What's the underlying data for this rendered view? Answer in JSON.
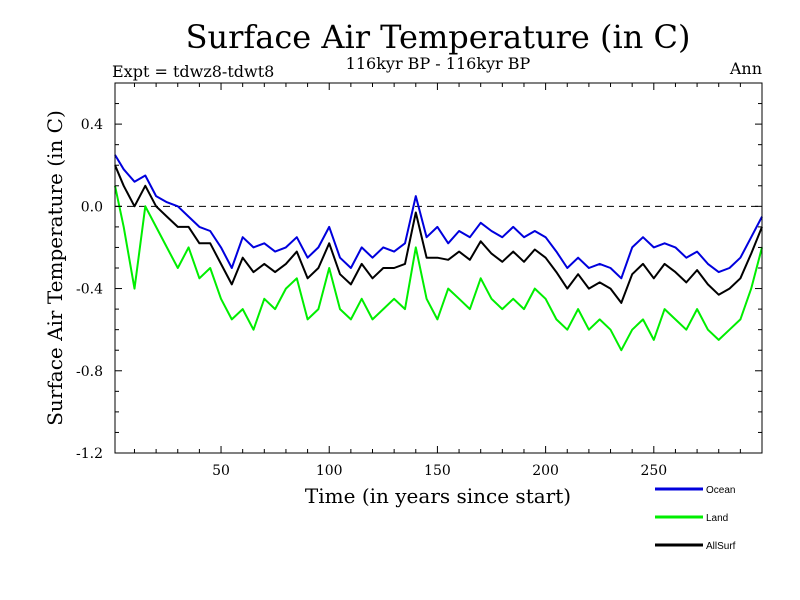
{
  "chart_data": {
    "type": "line",
    "title": "Surface Air Temperature (in C)",
    "subtitle": "116kyr BP - 116kyr BP",
    "left_label": "Expt = tdwz8-tdwt8",
    "right_label": "Ann",
    "xlabel": "Time (in years since start)",
    "ylabel": "Surface Air Temperature (in C)",
    "xlim": [
      1,
      300
    ],
    "ylim": [
      -1.2,
      0.6
    ],
    "xticks": [
      50,
      100,
      150,
      200,
      250
    ],
    "yticks": [
      0.4,
      0.0,
      -0.4,
      -0.8,
      -1.2
    ],
    "ytick_labels": [
      "0.4",
      "0.0",
      "-0.4",
      "-0.8",
      "-1.2"
    ],
    "reference_line": 0.0,
    "legend_position": "bottom-right",
    "series": [
      {
        "name": "Ocean",
        "color": "#0000dd",
        "x": [
          1,
          5,
          10,
          15,
          20,
          25,
          30,
          35,
          40,
          45,
          50,
          55,
          60,
          65,
          70,
          75,
          80,
          85,
          90,
          95,
          100,
          105,
          110,
          115,
          120,
          125,
          130,
          135,
          140,
          145,
          150,
          155,
          160,
          165,
          170,
          175,
          180,
          185,
          190,
          195,
          200,
          205,
          210,
          215,
          220,
          225,
          230,
          235,
          240,
          245,
          250,
          255,
          260,
          265,
          270,
          275,
          280,
          285,
          290,
          295,
          300
        ],
        "values": [
          0.25,
          0.18,
          0.12,
          0.15,
          0.05,
          0.02,
          0.0,
          -0.05,
          -0.1,
          -0.12,
          -0.2,
          -0.3,
          -0.15,
          -0.2,
          -0.18,
          -0.22,
          -0.2,
          -0.15,
          -0.25,
          -0.2,
          -0.1,
          -0.25,
          -0.3,
          -0.2,
          -0.25,
          -0.2,
          -0.22,
          -0.18,
          0.05,
          -0.15,
          -0.1,
          -0.18,
          -0.12,
          -0.15,
          -0.08,
          -0.12,
          -0.15,
          -0.1,
          -0.15,
          -0.12,
          -0.15,
          -0.22,
          -0.3,
          -0.25,
          -0.3,
          -0.28,
          -0.3,
          -0.35,
          -0.2,
          -0.15,
          -0.2,
          -0.18,
          -0.2,
          -0.25,
          -0.22,
          -0.28,
          -0.32,
          -0.3,
          -0.25,
          -0.15,
          -0.05
        ]
      },
      {
        "name": "Land",
        "color": "#00ee00",
        "x": [
          1,
          5,
          10,
          15,
          20,
          25,
          30,
          35,
          40,
          45,
          50,
          55,
          60,
          65,
          70,
          75,
          80,
          85,
          90,
          95,
          100,
          105,
          110,
          115,
          120,
          125,
          130,
          135,
          140,
          145,
          150,
          155,
          160,
          165,
          170,
          175,
          180,
          185,
          190,
          195,
          200,
          205,
          210,
          215,
          220,
          225,
          230,
          235,
          240,
          245,
          250,
          255,
          260,
          265,
          270,
          275,
          280,
          285,
          290,
          295,
          300
        ],
        "values": [
          0.1,
          -0.1,
          -0.4,
          0.0,
          -0.1,
          -0.2,
          -0.3,
          -0.2,
          -0.35,
          -0.3,
          -0.45,
          -0.55,
          -0.5,
          -0.6,
          -0.45,
          -0.5,
          -0.4,
          -0.35,
          -0.55,
          -0.5,
          -0.3,
          -0.5,
          -0.55,
          -0.45,
          -0.55,
          -0.5,
          -0.45,
          -0.5,
          -0.2,
          -0.45,
          -0.55,
          -0.4,
          -0.45,
          -0.5,
          -0.35,
          -0.45,
          -0.5,
          -0.45,
          -0.5,
          -0.4,
          -0.45,
          -0.55,
          -0.6,
          -0.5,
          -0.6,
          -0.55,
          -0.6,
          -0.7,
          -0.6,
          -0.55,
          -0.65,
          -0.5,
          -0.55,
          -0.6,
          -0.5,
          -0.6,
          -0.65,
          -0.6,
          -0.55,
          -0.4,
          -0.2
        ]
      },
      {
        "name": "AllSurf",
        "color": "#000000",
        "x": [
          1,
          5,
          10,
          15,
          20,
          25,
          30,
          35,
          40,
          45,
          50,
          55,
          60,
          65,
          70,
          75,
          80,
          85,
          90,
          95,
          100,
          105,
          110,
          115,
          120,
          125,
          130,
          135,
          140,
          145,
          150,
          155,
          160,
          165,
          170,
          175,
          180,
          185,
          190,
          195,
          200,
          205,
          210,
          215,
          220,
          225,
          230,
          235,
          240,
          245,
          250,
          255,
          260,
          265,
          270,
          275,
          280,
          285,
          290,
          295,
          300
        ],
        "values": [
          0.2,
          0.1,
          0.0,
          0.1,
          0.0,
          -0.05,
          -0.1,
          -0.1,
          -0.18,
          -0.18,
          -0.28,
          -0.38,
          -0.25,
          -0.32,
          -0.28,
          -0.32,
          -0.28,
          -0.22,
          -0.35,
          -0.3,
          -0.18,
          -0.33,
          -0.38,
          -0.28,
          -0.35,
          -0.3,
          -0.3,
          -0.28,
          -0.03,
          -0.25,
          -0.25,
          -0.26,
          -0.22,
          -0.26,
          -0.17,
          -0.23,
          -0.27,
          -0.22,
          -0.27,
          -0.21,
          -0.25,
          -0.32,
          -0.4,
          -0.33,
          -0.4,
          -0.37,
          -0.4,
          -0.47,
          -0.33,
          -0.28,
          -0.35,
          -0.28,
          -0.32,
          -0.37,
          -0.31,
          -0.38,
          -0.43,
          -0.4,
          -0.35,
          -0.23,
          -0.1
        ]
      }
    ]
  }
}
